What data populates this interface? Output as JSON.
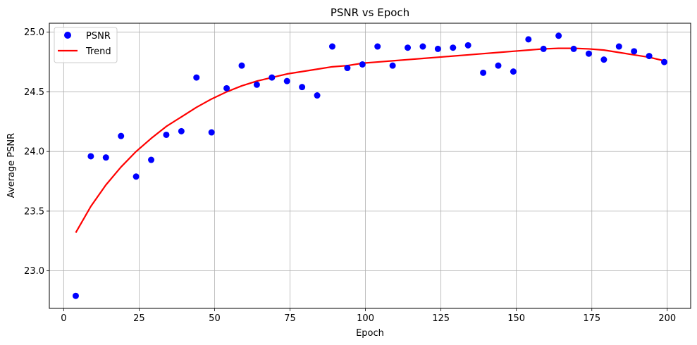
{
  "chart_data": {
    "type": "scatter",
    "title": "PSNR vs Epoch",
    "xlabel": "Epoch",
    "ylabel": "Average PSNR",
    "xlim": [
      -4.75,
      207.75
    ],
    "ylim": [
      22.685,
      25.075
    ],
    "xticks": [
      0,
      25,
      50,
      75,
      100,
      125,
      150,
      175,
      200
    ],
    "yticks": [
      23.0,
      23.5,
      24.0,
      24.5,
      25.0
    ],
    "xtick_labels": [
      "0",
      "25",
      "50",
      "75",
      "100",
      "125",
      "150",
      "175",
      "200"
    ],
    "ytick_labels": [
      "23.0",
      "23.5",
      "24.0",
      "24.5",
      "25.0"
    ],
    "grid": true,
    "legend_position": "top-left",
    "series": [
      {
        "name": "PSNR",
        "kind": "scatter",
        "color": "#0000ff",
        "x": [
          4,
          9,
          14,
          19,
          24,
          29,
          34,
          39,
          44,
          49,
          54,
          59,
          64,
          69,
          74,
          79,
          84,
          89,
          94,
          99,
          104,
          109,
          114,
          119,
          124,
          129,
          134,
          139,
          144,
          149,
          154,
          159,
          164,
          169,
          174,
          179,
          184,
          189,
          194,
          199
        ],
        "y": [
          22.79,
          23.96,
          23.95,
          24.13,
          23.79,
          23.93,
          24.14,
          24.17,
          24.62,
          24.16,
          24.53,
          24.72,
          24.56,
          24.62,
          24.59,
          24.54,
          24.47,
          24.88,
          24.7,
          24.73,
          24.88,
          24.72,
          24.87,
          24.88,
          24.86,
          24.87,
          24.89,
          24.66,
          24.72,
          24.67,
          24.94,
          24.86,
          24.97,
          24.86,
          24.82,
          24.77,
          24.88,
          24.84,
          24.8,
          24.75
        ]
      },
      {
        "name": "Trend",
        "kind": "line",
        "color": "#ff0000",
        "x": [
          4,
          9,
          14,
          19,
          24,
          29,
          34,
          39,
          44,
          49,
          54,
          59,
          64,
          69,
          74,
          79,
          84,
          89,
          94,
          99,
          104,
          109,
          114,
          119,
          124,
          129,
          134,
          139,
          144,
          149,
          154,
          159,
          164,
          169,
          174,
          179,
          184,
          189,
          194,
          199
        ],
        "y": [
          23.32,
          23.54,
          23.72,
          23.87,
          24.0,
          24.11,
          24.21,
          24.29,
          24.37,
          24.44,
          24.5,
          24.55,
          24.59,
          24.62,
          24.65,
          24.67,
          24.69,
          24.71,
          24.72,
          24.74,
          24.75,
          24.76,
          24.77,
          24.78,
          24.79,
          24.8,
          24.81,
          24.82,
          24.83,
          24.84,
          24.85,
          24.86,
          24.865,
          24.865,
          24.86,
          24.85,
          24.83,
          24.81,
          24.79,
          24.76
        ]
      }
    ]
  }
}
